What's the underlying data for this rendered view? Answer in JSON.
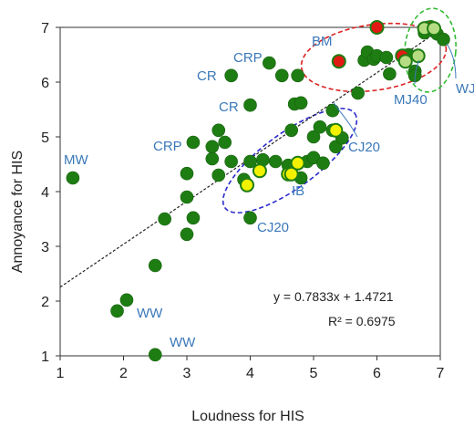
{
  "chart_data": {
    "type": "scatter",
    "xlabel": "Loudness for HIS",
    "ylabel": "Annoyance for HIS",
    "xlim": [
      1,
      7
    ],
    "ylim": [
      1,
      7
    ],
    "xticks": [
      "1",
      "2",
      "3",
      "4",
      "5",
      "6",
      "7"
    ],
    "yticks": [
      "1",
      "2",
      "3",
      "4",
      "5",
      "6",
      "7"
    ],
    "grid": false,
    "colors": {
      "green": "#1e7d12",
      "yellow": "#f2f200",
      "red": "#e01a14",
      "lightgreen": "#b6dc82",
      "label": "#3a78b8",
      "blue_ellipse": "#2b2bcc",
      "red_ellipse": "#dd2222",
      "green_ellipse": "#33bb33"
    },
    "series": [
      {
        "color": "green",
        "points": [
          [
            1.2,
            4.25
          ],
          [
            1.9,
            1.82
          ],
          [
            2.05,
            2.02
          ],
          [
            2.5,
            2.65
          ],
          [
            2.5,
            1.02
          ],
          [
            2.65,
            3.5
          ],
          [
            3.0,
            3.22
          ],
          [
            3.0,
            3.9
          ],
          [
            3.0,
            4.33
          ],
          [
            3.1,
            3.52
          ],
          [
            3.1,
            4.9
          ],
          [
            3.4,
            4.6
          ],
          [
            3.4,
            4.82
          ],
          [
            3.5,
            5.12
          ],
          [
            3.5,
            4.3
          ],
          [
            3.6,
            4.9
          ],
          [
            3.7,
            4.55
          ],
          [
            3.7,
            6.12
          ],
          [
            3.9,
            4.22
          ],
          [
            4.0,
            5.58
          ],
          [
            4.0,
            4.55
          ],
          [
            4.0,
            3.52
          ],
          [
            4.2,
            4.58
          ],
          [
            4.3,
            6.35
          ],
          [
            4.4,
            4.55
          ],
          [
            4.5,
            6.12
          ],
          [
            4.6,
            4.48
          ],
          [
            4.65,
            5.12
          ],
          [
            4.7,
            5.6
          ],
          [
            4.75,
            6.12
          ],
          [
            4.8,
            5.62
          ],
          [
            4.8,
            4.25
          ],
          [
            4.9,
            4.55
          ],
          [
            5.0,
            5.0
          ],
          [
            5.0,
            4.62
          ],
          [
            5.1,
            5.18
          ],
          [
            5.15,
            4.52
          ],
          [
            5.3,
            5.48
          ],
          [
            5.3,
            5.12
          ],
          [
            5.35,
            4.82
          ],
          [
            5.45,
            4.98
          ],
          [
            5.7,
            5.8
          ],
          [
            5.8,
            6.4
          ],
          [
            5.85,
            6.55
          ],
          [
            5.95,
            6.42
          ],
          [
            6.0,
            6.48
          ],
          [
            6.15,
            6.45
          ],
          [
            6.2,
            6.15
          ],
          [
            6.5,
            6.5
          ],
          [
            6.6,
            6.2
          ],
          [
            6.6,
            6.12
          ],
          [
            6.75,
            6.9
          ],
          [
            6.8,
            7.0
          ],
          [
            6.95,
            6.88
          ],
          [
            7.05,
            6.78
          ]
        ]
      },
      {
        "color": "yellow",
        "points": [
          [
            3.95,
            4.12
          ],
          [
            4.15,
            4.38
          ],
          [
            4.6,
            4.32
          ],
          [
            4.65,
            4.32
          ],
          [
            4.75,
            4.52
          ],
          [
            5.35,
            5.12
          ]
        ]
      },
      {
        "color": "red",
        "points": [
          [
            5.4,
            6.38
          ],
          [
            6.0,
            7.0
          ],
          [
            6.4,
            6.48
          ],
          [
            6.85,
            7.0
          ]
        ]
      },
      {
        "color": "lightgreen",
        "points": [
          [
            6.45,
            6.38
          ],
          [
            6.65,
            6.48
          ],
          [
            6.75,
            6.98
          ],
          [
            6.9,
            6.98
          ]
        ]
      }
    ],
    "trendline": {
      "slope": 0.7833,
      "intercept": 1.4721,
      "x_range": [
        1,
        7
      ]
    },
    "annotations": {
      "equation": "y = 0.7833x + 1.4721",
      "r2": "R² = 0.6975",
      "labels": [
        "MW",
        "CRP",
        "CR",
        "CR",
        "CRP",
        "BM",
        "WJ",
        "MJ40",
        "CJ20",
        "IB",
        "CJ20",
        "WW",
        "WW"
      ]
    }
  }
}
